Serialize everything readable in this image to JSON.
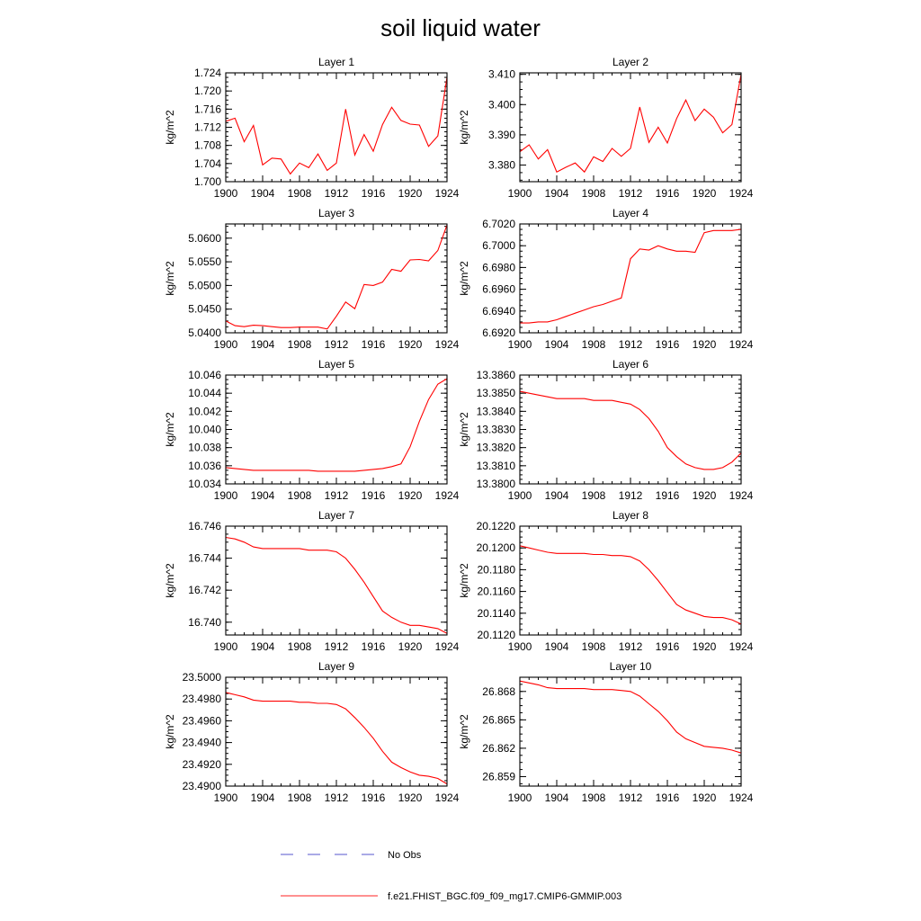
{
  "figure": {
    "title": "soil liquid water",
    "legend": [
      {
        "label": "No Obs",
        "color": "#5555cc",
        "dash": "dashed"
      },
      {
        "label": "f.e21.FHIST_BGC.f09_f09_mg17.CMIP6-GMMIP.003",
        "color": "#ff2222",
        "dash": "solid"
      }
    ],
    "colors": {
      "series": "#ff0000",
      "axis": "#000000"
    }
  },
  "chart_data": [
    {
      "type": "line",
      "title": "Layer 1",
      "ylabel": "kg/m^2",
      "xlabel": "",
      "xlim": [
        1900,
        1924
      ],
      "ylim": [
        1.7,
        1.724
      ],
      "xticks": [
        "1900",
        "1904",
        "1908",
        "1912",
        "1916",
        "1920",
        "1924"
      ],
      "yticks": [
        "1.700",
        "1.704",
        "1.708",
        "1.712",
        "1.716",
        "1.720",
        "1.724"
      ],
      "x": [
        1900,
        1901,
        1902,
        1903,
        1904,
        1905,
        1906,
        1907,
        1908,
        1909,
        1910,
        1911,
        1912,
        1913,
        1914,
        1915,
        1916,
        1917,
        1918,
        1919,
        1920,
        1921,
        1922,
        1923,
        1924
      ],
      "series": [
        {
          "name": "f.e21.FHIST_BGC.f09_f09_mg17.CMIP6-GMMIP.003",
          "values": [
            1.7133,
            1.714,
            1.7088,
            1.7124,
            1.7037,
            1.7052,
            1.705,
            1.7017,
            1.7041,
            1.7031,
            1.7061,
            1.7025,
            1.7041,
            1.716,
            1.7059,
            1.7104,
            1.7067,
            1.7126,
            1.7164,
            1.7135,
            1.7127,
            1.7125,
            1.7078,
            1.7101,
            1.723
          ]
        }
      ]
    },
    {
      "type": "line",
      "title": "Layer 2",
      "ylabel": "kg/m^2",
      "xlabel": "",
      "xlim": [
        1900,
        1924
      ],
      "ylim": [
        3.3745,
        3.4105
      ],
      "xticks": [
        "1900",
        "1904",
        "1908",
        "1912",
        "1916",
        "1920",
        "1924"
      ],
      "yticks": [
        "3.380",
        "3.390",
        "3.400",
        "3.410"
      ],
      "x": [
        1900,
        1901,
        1902,
        1903,
        1904,
        1905,
        1906,
        1907,
        1908,
        1909,
        1910,
        1911,
        1912,
        1913,
        1914,
        1915,
        1916,
        1917,
        1918,
        1919,
        1920,
        1921,
        1922,
        1923,
        1924
      ],
      "series": [
        {
          "name": "f.e21.FHIST_BGC.f09_f09_mg17.CMIP6-GMMIP.003",
          "values": [
            3.3844,
            3.3867,
            3.382,
            3.3851,
            3.3777,
            3.3793,
            3.3807,
            3.3777,
            3.3827,
            3.3812,
            3.3855,
            3.3829,
            3.3855,
            3.3992,
            3.3875,
            3.3925,
            3.3873,
            3.3954,
            3.4015,
            3.3947,
            3.3985,
            3.3958,
            3.3907,
            3.3934,
            3.41
          ]
        }
      ]
    },
    {
      "type": "line",
      "title": "Layer 3",
      "ylabel": "kg/m^2",
      "xlabel": "",
      "xlim": [
        1900,
        1924
      ],
      "ylim": [
        5.04,
        5.063
      ],
      "xticks": [
        "1900",
        "1904",
        "1908",
        "1912",
        "1916",
        "1920",
        "1924"
      ],
      "yticks": [
        "5.0400",
        "5.0450",
        "5.0500",
        "5.0550",
        "5.0600"
      ],
      "x": [
        1900,
        1901,
        1902,
        1903,
        1904,
        1905,
        1906,
        1907,
        1908,
        1909,
        1910,
        1911,
        1912,
        1913,
        1914,
        1915,
        1916,
        1917,
        1918,
        1919,
        1920,
        1921,
        1922,
        1923,
        1924
      ],
      "series": [
        {
          "name": "f.e21.FHIST_BGC.f09_f09_mg17.CMIP6-GMMIP.003",
          "values": [
            5.0425,
            5.0415,
            5.0413,
            5.0416,
            5.0415,
            5.0413,
            5.0411,
            5.0411,
            5.0412,
            5.0412,
            5.0412,
            5.0408,
            5.0435,
            5.0465,
            5.0451,
            5.0502,
            5.05,
            5.0507,
            5.0534,
            5.053,
            5.0554,
            5.0555,
            5.0552,
            5.0574,
            5.0628
          ]
        }
      ]
    },
    {
      "type": "line",
      "title": "Layer 4",
      "ylabel": "kg/m^2",
      "xlabel": "",
      "xlim": [
        1900,
        1924
      ],
      "ylim": [
        6.692,
        6.702
      ],
      "xticks": [
        "1900",
        "1904",
        "1908",
        "1912",
        "1916",
        "1920",
        "1924"
      ],
      "yticks": [
        "6.6920",
        "6.6940",
        "6.6960",
        "6.6980",
        "6.7000",
        "6.7020"
      ],
      "x": [
        1900,
        1901,
        1902,
        1903,
        1904,
        1905,
        1906,
        1907,
        1908,
        1909,
        1910,
        1911,
        1912,
        1913,
        1914,
        1915,
        1916,
        1917,
        1918,
        1919,
        1920,
        1921,
        1922,
        1923,
        1924
      ],
      "series": [
        {
          "name": "f.e21.FHIST_BGC.f09_f09_mg17.CMIP6-GMMIP.003",
          "values": [
            6.6929,
            6.6929,
            6.693,
            6.693,
            6.6932,
            6.6935,
            6.6938,
            6.6941,
            6.6944,
            6.6946,
            6.6949,
            6.6952,
            6.6988,
            6.6997,
            6.6996,
            6.7,
            6.6997,
            6.6995,
            6.6995,
            6.6994,
            6.7012,
            6.7014,
            6.7014,
            6.7014,
            6.7015
          ]
        }
      ]
    },
    {
      "type": "line",
      "title": "Layer 5",
      "ylabel": "kg/m^2",
      "xlabel": "",
      "xlim": [
        1900,
        1924
      ],
      "ylim": [
        10.034,
        10.046
      ],
      "xticks": [
        "1900",
        "1904",
        "1908",
        "1912",
        "1916",
        "1920",
        "1924"
      ],
      "yticks": [
        "10.034",
        "10.036",
        "10.038",
        "10.040",
        "10.042",
        "10.044",
        "10.046"
      ],
      "x": [
        1900,
        1901,
        1902,
        1903,
        1904,
        1905,
        1906,
        1907,
        1908,
        1909,
        1910,
        1911,
        1912,
        1913,
        1914,
        1915,
        1916,
        1917,
        1918,
        1919,
        1920,
        1921,
        1922,
        1923,
        1924
      ],
      "series": [
        {
          "name": "f.e21.FHIST_BGC.f09_f09_mg17.CMIP6-GMMIP.003",
          "values": [
            10.0358,
            10.0357,
            10.0356,
            10.0355,
            10.0355,
            10.0355,
            10.0355,
            10.0355,
            10.0355,
            10.0355,
            10.0354,
            10.0354,
            10.0354,
            10.0354,
            10.0354,
            10.0355,
            10.0356,
            10.0357,
            10.0359,
            10.0362,
            10.0381,
            10.0409,
            10.0433,
            10.045,
            10.0456
          ]
        }
      ]
    },
    {
      "type": "line",
      "title": "Layer 6",
      "ylabel": "kg/m^2",
      "xlabel": "",
      "xlim": [
        1900,
        1924
      ],
      "ylim": [
        13.38,
        13.386
      ],
      "xticks": [
        "1900",
        "1904",
        "1908",
        "1912",
        "1916",
        "1920",
        "1924"
      ],
      "yticks": [
        "13.3800",
        "13.3810",
        "13.3820",
        "13.3830",
        "13.3840",
        "13.3850",
        "13.3860"
      ],
      "x": [
        1900,
        1901,
        1902,
        1903,
        1904,
        1905,
        1906,
        1907,
        1908,
        1909,
        1910,
        1911,
        1912,
        1913,
        1914,
        1915,
        1916,
        1917,
        1918,
        1919,
        1920,
        1921,
        1922,
        1923,
        1924
      ],
      "series": [
        {
          "name": "f.e21.FHIST_BGC.f09_f09_mg17.CMIP6-GMMIP.003",
          "values": [
            13.3851,
            13.385,
            13.3849,
            13.3848,
            13.3847,
            13.3847,
            13.3847,
            13.3847,
            13.3846,
            13.3846,
            13.3846,
            13.3845,
            13.3844,
            13.3841,
            13.3836,
            13.3829,
            13.382,
            13.3815,
            13.3811,
            13.3809,
            13.3808,
            13.3808,
            13.3809,
            13.3812,
            13.3817
          ]
        }
      ]
    },
    {
      "type": "line",
      "title": "Layer 7",
      "ylabel": "kg/m^2",
      "xlabel": "",
      "xlim": [
        1900,
        1924
      ],
      "ylim": [
        16.7392,
        16.746
      ],
      "xticks": [
        "1900",
        "1904",
        "1908",
        "1912",
        "1916",
        "1920",
        "1924"
      ],
      "yticks": [
        "16.740",
        "16.742",
        "16.744",
        "16.746"
      ],
      "x": [
        1900,
        1901,
        1902,
        1903,
        1904,
        1905,
        1906,
        1907,
        1908,
        1909,
        1910,
        1911,
        1912,
        1913,
        1914,
        1915,
        1916,
        1917,
        1918,
        1919,
        1920,
        1921,
        1922,
        1923,
        1924
      ],
      "series": [
        {
          "name": "f.e21.FHIST_BGC.f09_f09_mg17.CMIP6-GMMIP.003",
          "values": [
            16.7453,
            16.7452,
            16.745,
            16.7447,
            16.7446,
            16.7446,
            16.7446,
            16.7446,
            16.7446,
            16.7445,
            16.7445,
            16.7445,
            16.7444,
            16.744,
            16.7433,
            16.7425,
            16.7416,
            16.7407,
            16.7403,
            16.74,
            16.7398,
            16.7398,
            16.7397,
            16.7396,
            16.7393
          ]
        }
      ]
    },
    {
      "type": "line",
      "title": "Layer 8",
      "ylabel": "kg/m^2",
      "xlabel": "",
      "xlim": [
        1900,
        1924
      ],
      "ylim": [
        20.112,
        20.122
      ],
      "xticks": [
        "1900",
        "1904",
        "1908",
        "1912",
        "1916",
        "1920",
        "1924"
      ],
      "yticks": [
        "20.1120",
        "20.1140",
        "20.1160",
        "20.1180",
        "20.1200",
        "20.1220"
      ],
      "x": [
        1900,
        1901,
        1902,
        1903,
        1904,
        1905,
        1906,
        1907,
        1908,
        1909,
        1910,
        1911,
        1912,
        1913,
        1914,
        1915,
        1916,
        1917,
        1918,
        1919,
        1920,
        1921,
        1922,
        1923,
        1924
      ],
      "series": [
        {
          "name": "f.e21.FHIST_BGC.f09_f09_mg17.CMIP6-GMMIP.003",
          "values": [
            20.1202,
            20.12,
            20.1198,
            20.1196,
            20.1195,
            20.1195,
            20.1195,
            20.1195,
            20.1194,
            20.1194,
            20.1193,
            20.1193,
            20.1192,
            20.1188,
            20.118,
            20.117,
            20.1159,
            20.1148,
            20.1143,
            20.114,
            20.1137,
            20.1136,
            20.1136,
            20.1134,
            20.113
          ]
        }
      ]
    },
    {
      "type": "line",
      "title": "Layer 9",
      "ylabel": "kg/m^2",
      "xlabel": "",
      "xlim": [
        1900,
        1924
      ],
      "ylim": [
        23.49,
        23.5
      ],
      "xticks": [
        "1900",
        "1904",
        "1908",
        "1912",
        "1916",
        "1920",
        "1924"
      ],
      "yticks": [
        "23.4900",
        "23.4920",
        "23.4940",
        "23.4960",
        "23.4980",
        "23.5000"
      ],
      "x": [
        1900,
        1901,
        1902,
        1903,
        1904,
        1905,
        1906,
        1907,
        1908,
        1909,
        1910,
        1911,
        1912,
        1913,
        1914,
        1915,
        1916,
        1917,
        1918,
        1919,
        1920,
        1921,
        1922,
        1923,
        1924
      ],
      "series": [
        {
          "name": "f.e21.FHIST_BGC.f09_f09_mg17.CMIP6-GMMIP.003",
          "values": [
            23.4986,
            23.4984,
            23.4982,
            23.4979,
            23.4978,
            23.4978,
            23.4978,
            23.4978,
            23.4977,
            23.4977,
            23.4976,
            23.4976,
            23.4975,
            23.4971,
            23.4963,
            23.4954,
            23.4944,
            23.4932,
            23.4922,
            23.4917,
            23.4913,
            23.491,
            23.4909,
            23.4907,
            23.4902
          ]
        }
      ]
    },
    {
      "type": "line",
      "title": "Layer 10",
      "ylabel": "kg/m^2",
      "xlabel": "",
      "xlim": [
        1900,
        1924
      ],
      "ylim": [
        26.858,
        26.8695
      ],
      "xticks": [
        "1900",
        "1904",
        "1908",
        "1912",
        "1916",
        "1920",
        "1924"
      ],
      "yticks": [
        "26.859",
        "26.862",
        "26.865",
        "26.868"
      ],
      "x": [
        1900,
        1901,
        1902,
        1903,
        1904,
        1905,
        1906,
        1907,
        1908,
        1909,
        1910,
        1911,
        1912,
        1913,
        1914,
        1915,
        1916,
        1917,
        1918,
        1919,
        1920,
        1921,
        1922,
        1923,
        1924
      ],
      "series": [
        {
          "name": "f.e21.FHIST_BGC.f09_f09_mg17.CMIP6-GMMIP.003",
          "values": [
            26.8691,
            26.8689,
            26.8687,
            26.8684,
            26.8683,
            26.8683,
            26.8683,
            26.8683,
            26.8682,
            26.8682,
            26.8682,
            26.8681,
            26.868,
            26.8675,
            26.8667,
            26.8659,
            26.8649,
            26.8637,
            26.863,
            26.8626,
            26.8622,
            26.8621,
            26.862,
            26.8618,
            26.8615
          ]
        }
      ]
    }
  ]
}
